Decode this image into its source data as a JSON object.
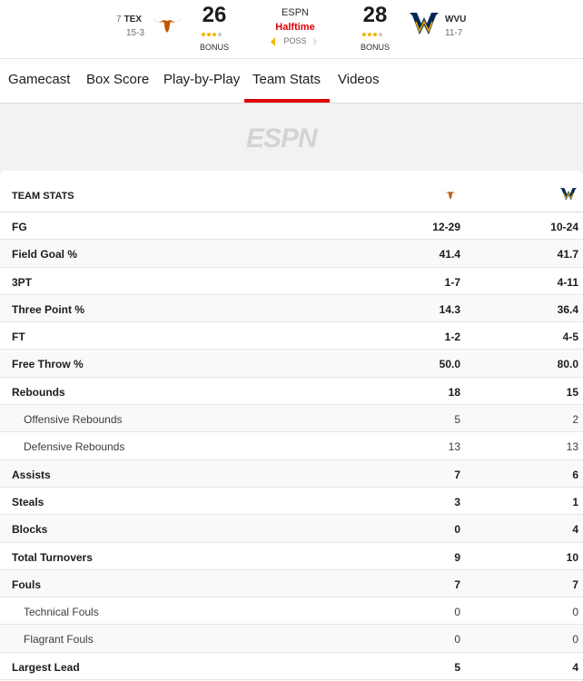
{
  "scoreboard": {
    "home": {
      "rank": "7",
      "abbr": "TEX",
      "record": "15-3",
      "score": "26",
      "bonus": "BONUS",
      "team_color": "#bf5700"
    },
    "away": {
      "abbr": "WVU",
      "record": "11-7",
      "score": "28",
      "bonus": "BONUS",
      "team_color": "#002855"
    },
    "network": "ESPN",
    "status": "Halftime",
    "poss_label": "POSS",
    "status_color": "#dd0000"
  },
  "tabs": [
    {
      "label": "Gamecast"
    },
    {
      "label": "Box Score"
    },
    {
      "label": "Play-by-Play"
    },
    {
      "label": "Team Stats",
      "active": true
    },
    {
      "label": "Videos"
    }
  ],
  "ad": {
    "logo_text": "ESPN"
  },
  "team_stats": {
    "title": "TEAM STATS",
    "rows": [
      {
        "label": "FG",
        "home": "12-29",
        "away": "10-24"
      },
      {
        "label": "Field Goal %",
        "home": "41.4",
        "away": "41.7"
      },
      {
        "label": "3PT",
        "home": "1-7",
        "away": "4-11"
      },
      {
        "label": "Three Point %",
        "home": "14.3",
        "away": "36.4"
      },
      {
        "label": "FT",
        "home": "1-2",
        "away": "4-5"
      },
      {
        "label": "Free Throw %",
        "home": "50.0",
        "away": "80.0"
      },
      {
        "label": "Rebounds",
        "home": "18",
        "away": "15"
      },
      {
        "label": "Offensive Rebounds",
        "home": "5",
        "away": "2"
      },
      {
        "label": "Defensive Rebounds",
        "home": "13",
        "away": "13"
      },
      {
        "label": "Assists",
        "home": "7",
        "away": "6"
      },
      {
        "label": "Steals",
        "home": "3",
        "away": "1"
      },
      {
        "label": "Blocks",
        "home": "0",
        "away": "4"
      },
      {
        "label": "Total Turnovers",
        "home": "9",
        "away": "10"
      },
      {
        "label": "Fouls",
        "home": "7",
        "away": "7"
      },
      {
        "label": "Technical Fouls",
        "home": "0",
        "away": "0"
      },
      {
        "label": "Flagrant Fouls",
        "home": "0",
        "away": "0"
      },
      {
        "label": "Largest Lead",
        "home": "5",
        "away": "4"
      }
    ]
  }
}
